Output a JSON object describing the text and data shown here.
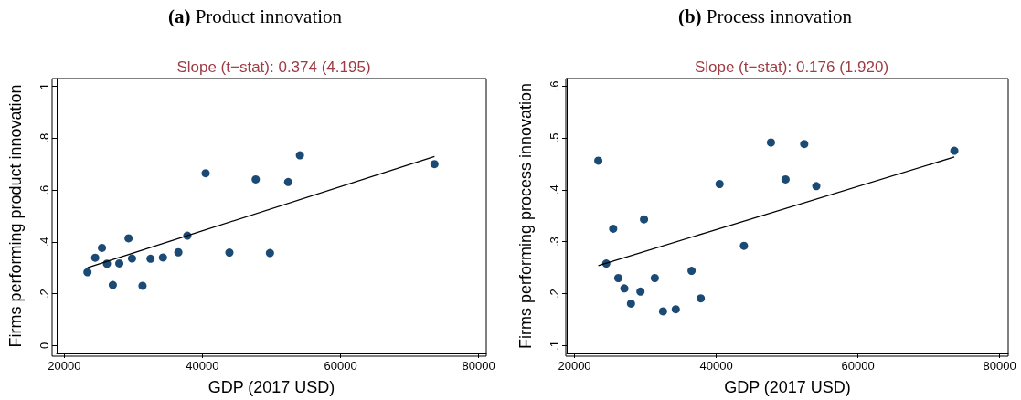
{
  "chart_data": [
    {
      "type": "scatter",
      "title": "(a) Product innovation",
      "subtitle": "Slope (t−stat): 0.374 (4.195)",
      "xlabel": "GDP (2017 USD)",
      "ylabel": "Firms performing product innovation",
      "xlim": [
        18900,
        81100
      ],
      "xticks": [
        20000,
        40000,
        60000,
        80000
      ],
      "ylim": [
        -0.03,
        1.03
      ],
      "yticks": [
        0,
        {
          "value": 0.2,
          "label": ".2"
        },
        {
          "value": 0.4,
          "label": ".4"
        },
        {
          "value": 0.6,
          "label": ".6"
        },
        {
          "value": 0.8,
          "label": ".8"
        },
        1
      ],
      "grid": false,
      "series": [
        {
          "color": "#1b4a74",
          "marker": "circle",
          "x": [
            23360,
            24480,
            25460,
            26180,
            27030,
            27970,
            29310,
            29810,
            31330,
            32490,
            34290,
            36520,
            37820,
            40470,
            43910,
            47720,
            49780,
            52420,
            54120,
            73600
          ],
          "values": [
            0.283,
            0.339,
            0.377,
            0.316,
            0.234,
            0.317,
            0.414,
            0.336,
            0.231,
            0.335,
            0.34,
            0.36,
            0.424,
            0.665,
            0.359,
            0.641,
            0.357,
            0.631,
            0.734,
            0.7
          ]
        },
        {
          "type": "line",
          "color": "#000000",
          "marker": "none",
          "line_style": "solid",
          "x": [
            23360,
            73600
          ],
          "values": [
            0.301,
            0.729
          ]
        }
      ]
    },
    {
      "type": "scatter",
      "title": "(b) Process innovation",
      "subtitle": "Slope (t−stat): 0.176 (1.920)",
      "xlabel": "GDP (2017 USD)",
      "ylabel": "Firms performing process innovation",
      "xlim": [
        18900,
        81200
      ],
      "xticks": [
        20000,
        40000,
        60000,
        80000
      ],
      "ylim": [
        0.085,
        0.614
      ],
      "yticks": [
        {
          "value": 0.1,
          "label": ".1"
        },
        {
          "value": 0.2,
          "label": ".2"
        },
        {
          "value": 0.3,
          "label": ".3"
        },
        {
          "value": 0.4,
          "label": ".4"
        },
        {
          "value": 0.5,
          "label": ".5"
        },
        {
          "value": 0.6,
          "label": ".6"
        }
      ],
      "grid": false,
      "series": [
        {
          "color": "#1b4a74",
          "marker": "circle",
          "x": [
            23360,
            24480,
            25460,
            26180,
            27030,
            27970,
            29310,
            29810,
            31330,
            32490,
            34290,
            36520,
            37820,
            40470,
            43910,
            47720,
            49780,
            52420,
            54120,
            73600
          ],
          "values": [
            0.456,
            0.258,
            0.325,
            0.23,
            0.21,
            0.181,
            0.204,
            0.343,
            0.23,
            0.166,
            0.17,
            0.244,
            0.191,
            0.411,
            0.292,
            0.491,
            0.42,
            0.488,
            0.407,
            0.475
          ]
        },
        {
          "type": "line",
          "color": "#000000",
          "marker": "none",
          "line_style": "solid",
          "x": [
            23360,
            73600
          ],
          "values": [
            0.254,
            0.463
          ]
        }
      ]
    }
  ]
}
